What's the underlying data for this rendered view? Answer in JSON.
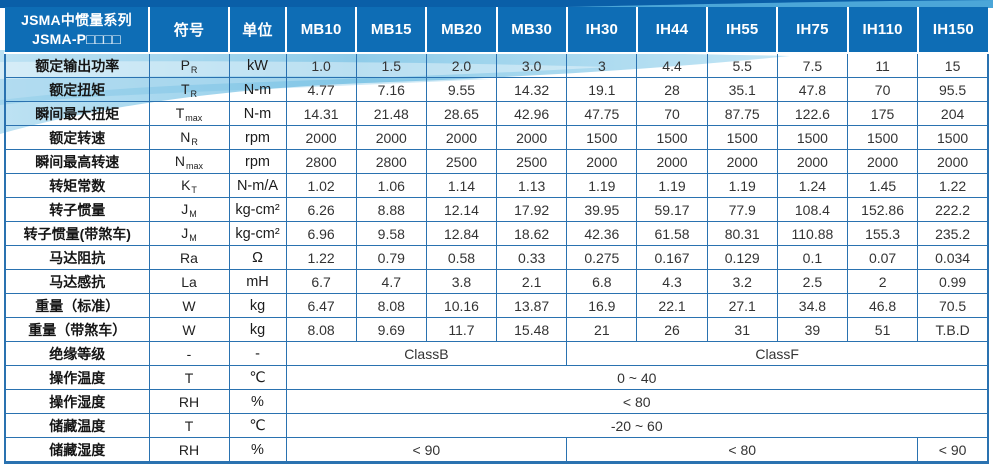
{
  "page": {
    "kind": "servo-motor-specification-datasheet"
  },
  "colors": {
    "header_bg": "#0e6db5",
    "grid_border": "#2a72b0",
    "top_strip": "#0a5fa8",
    "top_right_wave": "#4ba6d8",
    "swoosh_light_blue": "#8fcce9",
    "header_text": "#ffffff",
    "value_text": "#333333"
  },
  "table": {
    "title_line1": "JSMA中惯量系列",
    "title_line2": "JSMA-P□□□□",
    "symbol_header": "符号",
    "unit_header": "单位",
    "models": [
      "MB10",
      "MB15",
      "MB20",
      "MB30",
      "IH30",
      "IH44",
      "IH55",
      "IH75",
      "IH110",
      "IH150"
    ],
    "rows": [
      {
        "label": "额定输出功率",
        "sym": "P",
        "sub": "R",
        "unit": "kW",
        "values": [
          "1.0",
          "1.5",
          "2.0",
          "3.0",
          "3",
          "4.4",
          "5.5",
          "7.5",
          "11",
          "15"
        ]
      },
      {
        "label": "额定扭矩",
        "sym": "T",
        "sub": "R",
        "unit": "N-m",
        "values": [
          "4.77",
          "7.16",
          "9.55",
          "14.32",
          "19.1",
          "28",
          "35.1",
          "47.8",
          "70",
          "95.5"
        ]
      },
      {
        "label": "瞬间最大扭矩",
        "sym": "T",
        "sub": "max",
        "unit": "N-m",
        "values": [
          "14.31",
          "21.48",
          "28.65",
          "42.96",
          "47.75",
          "70",
          "87.75",
          "122.6",
          "175",
          "204"
        ]
      },
      {
        "label": "额定转速",
        "sym": "N",
        "sub": "R",
        "unit": "rpm",
        "values": [
          "2000",
          "2000",
          "2000",
          "2000",
          "1500",
          "1500",
          "1500",
          "1500",
          "1500",
          "1500"
        ]
      },
      {
        "label": "瞬间最高转速",
        "sym": "N",
        "sub": "max",
        "unit": "rpm",
        "values": [
          "2800",
          "2800",
          "2500",
          "2500",
          "2000",
          "2000",
          "2000",
          "2000",
          "2000",
          "2000"
        ]
      },
      {
        "label": "转矩常数",
        "sym": "K",
        "sub": "T",
        "unit": "N-m/A",
        "values": [
          "1.02",
          "1.06",
          "1.14",
          "1.13",
          "1.19",
          "1.19",
          "1.19",
          "1.24",
          "1.45",
          "1.22"
        ]
      },
      {
        "label": "转子惯量",
        "sym": "J",
        "sub": "M",
        "unit": "kg-cm²",
        "values": [
          "6.26",
          "8.88",
          "12.14",
          "17.92",
          "39.95",
          "59.17",
          "77.9",
          "108.4",
          "152.86",
          "222.2"
        ]
      },
      {
        "label": "转子惯量(带煞车)",
        "sym": "J",
        "sub": "M",
        "unit": "kg-cm²",
        "values": [
          "6.96",
          "9.58",
          "12.84",
          "18.62",
          "42.36",
          "61.58",
          "80.31",
          "110.88",
          "155.3",
          "235.2"
        ]
      },
      {
        "label": "马达阻抗",
        "sym": "Ra",
        "unit": "Ω",
        "values": [
          "1.22",
          "0.79",
          "0.58",
          "0.33",
          "0.275",
          "0.167",
          "0.129",
          "0.1",
          "0.07",
          "0.034"
        ]
      },
      {
        "label": "马达感抗",
        "sym": "La",
        "unit": "mH",
        "values": [
          "6.7",
          "4.7",
          "3.8",
          "2.1",
          "6.8",
          "4.3",
          "3.2",
          "2.5",
          "2",
          "0.99"
        ]
      },
      {
        "label": "重量（标准）",
        "sym": "W",
        "unit": "kg",
        "values": [
          "6.47",
          "8.08",
          "10.16",
          "13.87",
          "16.9",
          "22.1",
          "27.1",
          "34.8",
          "46.8",
          "70.5"
        ]
      },
      {
        "label": "重量（带煞车）",
        "sym": "W",
        "unit": "kg",
        "values": [
          "8.08",
          "9.69",
          "11.7",
          "15.48",
          "21",
          "26",
          "31",
          "39",
          "51",
          "T.B.D"
        ]
      },
      {
        "label": "绝缘等级",
        "sym": "-",
        "unit": "-",
        "spans": [
          {
            "text": "ClassB",
            "cols": 4
          },
          {
            "text": "ClassF",
            "cols": 6
          }
        ]
      },
      {
        "label": "操作温度",
        "sym": "T",
        "unit": "℃",
        "spans": [
          {
            "text": "0 ~ 40",
            "cols": 10
          }
        ]
      },
      {
        "label": "操作湿度",
        "sym": "RH",
        "unit": "%",
        "spans": [
          {
            "text": "< 80",
            "cols": 10
          }
        ]
      },
      {
        "label": "储藏温度",
        "sym": "T",
        "unit": "℃",
        "spans": [
          {
            "text": "-20 ~ 60",
            "cols": 10
          }
        ]
      },
      {
        "label": "储藏湿度",
        "sym": "RH",
        "unit": "%",
        "spans": [
          {
            "text": "< 90",
            "cols": 4
          },
          {
            "text": "< 80",
            "cols": 5
          },
          {
            "text": "< 90",
            "cols": 1
          }
        ]
      }
    ]
  }
}
